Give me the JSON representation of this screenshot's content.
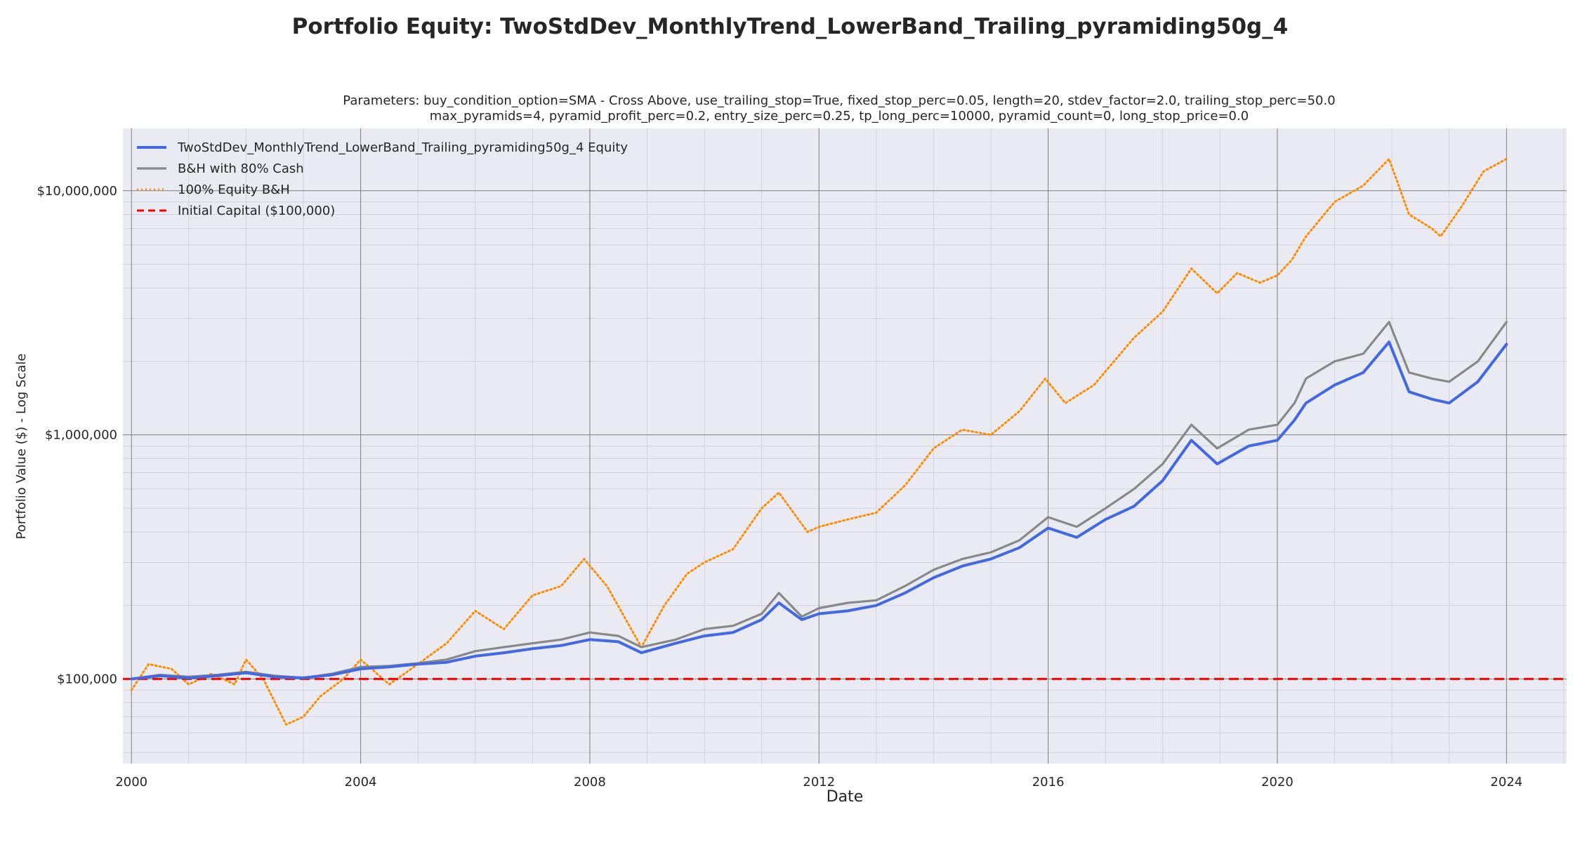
{
  "chart_data": {
    "type": "line",
    "title": "Portfolio Equity: TwoStdDev_MonthlyTrend_LowerBand_Trailing_pyramiding50g_4",
    "subtitle_lines": [
      "Parameters: buy_condition_option=SMA - Cross Above, use_trailing_stop=True, fixed_stop_perc=0.05, length=20, stdev_factor=2.0, trailing_stop_perc=50.0",
      "max_pyramids=4, pyramid_profit_perc=0.2, entry_size_perc=0.25, tp_long_perc=10000, pyramid_count=0, long_stop_price=0.0"
    ],
    "xlabel": "Date",
    "ylabel": "Portfolio Value ($) - Log Scale",
    "y_scale": "log",
    "grid": true,
    "legend_position": "top-left",
    "xlim": [
      1999.85,
      2025.05
    ],
    "ylim": [
      45000,
      18000000
    ],
    "x_ticks": [
      2000,
      2004,
      2008,
      2012,
      2016,
      2020,
      2024
    ],
    "x_tick_labels": [
      "2000",
      "2004",
      "2008",
      "2012",
      "2016",
      "2020",
      "2024"
    ],
    "y_ticks": [
      100000,
      1000000,
      10000000
    ],
    "y_tick_labels": [
      "$100,000",
      "$1,000,000",
      "$10,000,000"
    ],
    "colors": {
      "strategy": "#4169e1",
      "bh80": "#888888",
      "equity100": "#ff8c00",
      "initial": "#ff0000",
      "plot_bg": "#eaeaf2",
      "grid_major": "#7f7f7f",
      "grid_minor": "#d2d2dc"
    },
    "series": [
      {
        "name": "TwoStdDev_MonthlyTrend_LowerBand_Trailing_pyramiding50g_4 Equity",
        "style": "solid",
        "x": [
          2000.0,
          2000.5,
          2001.0,
          2001.5,
          2002.0,
          2002.5,
          2003.0,
          2003.5,
          2004.0,
          2004.5,
          2005.0,
          2005.5,
          2006.0,
          2006.5,
          2007.0,
          2007.5,
          2008.0,
          2008.5,
          2008.9,
          2009.5,
          2010.0,
          2010.5,
          2011.0,
          2011.3,
          2011.7,
          2012.0,
          2012.5,
          2013.0,
          2013.5,
          2014.0,
          2014.5,
          2015.0,
          2015.5,
          2016.0,
          2016.5,
          2017.0,
          2017.5,
          2018.0,
          2018.5,
          2018.95,
          2019.5,
          2020.0,
          2020.3,
          2020.5,
          2021.0,
          2021.5,
          2021.95,
          2022.3,
          2022.7,
          2023.0,
          2023.5,
          2024.0
        ],
        "y": [
          100000,
          103000,
          101000,
          103000,
          106000,
          102000,
          101000,
          104000,
          110000,
          112000,
          115000,
          117000,
          124000,
          128000,
          133000,
          137000,
          145000,
          142000,
          128000,
          140000,
          150000,
          155000,
          175000,
          205000,
          175000,
          185000,
          190000,
          200000,
          225000,
          260000,
          290000,
          310000,
          345000,
          415000,
          380000,
          450000,
          510000,
          650000,
          950000,
          760000,
          900000,
          950000,
          1150000,
          1350000,
          1600000,
          1800000,
          2400000,
          1500000,
          1400000,
          1350000,
          1650000,
          2350000
        ]
      },
      {
        "name": "B&H with 80% Cash",
        "style": "solid",
        "x": [
          2000.0,
          2000.5,
          2001.0,
          2001.5,
          2002.0,
          2002.5,
          2003.0,
          2003.5,
          2004.0,
          2004.5,
          2005.0,
          2005.5,
          2006.0,
          2006.5,
          2007.0,
          2007.5,
          2008.0,
          2008.5,
          2008.9,
          2009.5,
          2010.0,
          2010.5,
          2011.0,
          2011.3,
          2011.7,
          2012.0,
          2012.5,
          2013.0,
          2013.5,
          2014.0,
          2014.5,
          2015.0,
          2015.5,
          2016.0,
          2016.5,
          2017.0,
          2017.5,
          2018.0,
          2018.5,
          2018.95,
          2019.5,
          2020.0,
          2020.3,
          2020.5,
          2021.0,
          2021.5,
          2021.95,
          2022.3,
          2022.7,
          2023.0,
          2023.5,
          2024.0
        ],
        "y": [
          100000,
          104000,
          102000,
          104000,
          107000,
          103000,
          101000,
          105000,
          112000,
          113000,
          116000,
          120000,
          130000,
          135000,
          140000,
          145000,
          155000,
          150000,
          135000,
          145000,
          160000,
          165000,
          185000,
          225000,
          180000,
          195000,
          205000,
          210000,
          240000,
          280000,
          310000,
          330000,
          370000,
          460000,
          420000,
          500000,
          600000,
          760000,
          1100000,
          880000,
          1050000,
          1100000,
          1350000,
          1700000,
          2000000,
          2150000,
          2900000,
          1800000,
          1700000,
          1650000,
          2000000,
          2900000
        ]
      },
      {
        "name": "100% Equity B&H",
        "style": "dotted",
        "x": [
          2000.0,
          2000.3,
          2000.7,
          2001.0,
          2001.4,
          2001.8,
          2002.0,
          2002.3,
          2002.7,
          2003.0,
          2003.3,
          2003.7,
          2004.0,
          2004.5,
          2005.0,
          2005.5,
          2006.0,
          2006.5,
          2007.0,
          2007.5,
          2007.9,
          2008.3,
          2008.9,
          2009.3,
          2009.7,
          2010.0,
          2010.5,
          2011.0,
          2011.3,
          2011.8,
          2012.0,
          2012.5,
          2013.0,
          2013.5,
          2014.0,
          2014.5,
          2015.0,
          2015.5,
          2015.95,
          2016.3,
          2016.8,
          2017.5,
          2018.0,
          2018.5,
          2018.95,
          2019.3,
          2019.7,
          2020.0,
          2020.25,
          2020.5,
          2021.0,
          2021.5,
          2021.95,
          2022.3,
          2022.7,
          2022.85,
          2023.2,
          2023.6,
          2024.0
        ],
        "y": [
          90000,
          115000,
          110000,
          95000,
          105000,
          95000,
          120000,
          100000,
          65000,
          70000,
          85000,
          100000,
          120000,
          95000,
          115000,
          140000,
          190000,
          160000,
          220000,
          240000,
          310000,
          240000,
          135000,
          200000,
          270000,
          300000,
          340000,
          500000,
          580000,
          400000,
          420000,
          450000,
          480000,
          620000,
          880000,
          1050000,
          1000000,
          1250000,
          1700000,
          1350000,
          1600000,
          2500000,
          3200000,
          4800000,
          3800000,
          4600000,
          4200000,
          4500000,
          5200000,
          6500000,
          9000000,
          10500000,
          13500000,
          8000000,
          7000000,
          6500000,
          8500000,
          12000000,
          13500000
        ]
      },
      {
        "name": "Initial Capital ($100,000)",
        "style": "dashed",
        "y_constant": 100000
      }
    ]
  }
}
